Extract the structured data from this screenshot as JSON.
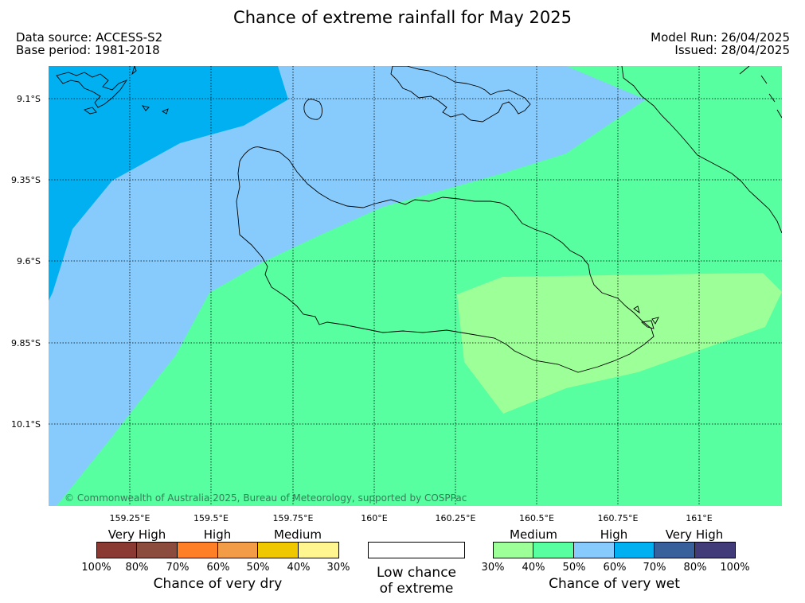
{
  "title": "Chance of extreme rainfall for May 2025",
  "data_source": "Data source: ACCESS-S2",
  "base_period": "Base period: 1981-2018",
  "model_run": "Model Run: 26/04/2025",
  "issued": "Issued: 28/04/2025",
  "copyright": "© Commonwealth of Australia 2025, Bureau of Meteorology, supported by COSPPac",
  "lat_ticks": [
    "9.1°S",
    "9.35°S",
    "9.6°S",
    "9.85°S",
    "10.1°S"
  ],
  "lon_ticks": [
    "159.25°E",
    "159.5°E",
    "159.75°E",
    "160°E",
    "160.25°E",
    "160.5°E",
    "160.75°E",
    "161°E"
  ],
  "zone_colors": {
    "very_wet_60_70": "#00b0f0",
    "very_wet_50_60": "#87cbfd",
    "very_wet_40_50": "#57ffa0",
    "very_wet_30_40": "#9dff98"
  },
  "legend": {
    "dry": {
      "categories": [
        "Very High",
        "High",
        "Medium"
      ],
      "colors": [
        "#8b3a33",
        "#8b4c3e",
        "#ff7f27",
        "#f39c47",
        "#f0c800",
        "#fff68f"
      ],
      "percents": [
        "100%",
        "80%",
        "70%",
        "60%",
        "50%",
        "40%",
        "30%"
      ],
      "title": "Chance of very dry"
    },
    "low": {
      "line1": "Low chance",
      "line2": "of extreme"
    },
    "wet": {
      "categories": [
        "Medium",
        "High",
        "Very High"
      ],
      "colors": [
        "#9dff98",
        "#57ffa0",
        "#87cbfd",
        "#00b0f0",
        "#38619c",
        "#413b79"
      ],
      "percents": [
        "30%",
        "40%",
        "50%",
        "60%",
        "70%",
        "80%",
        "100%"
      ],
      "title": "Chance of very wet"
    }
  }
}
